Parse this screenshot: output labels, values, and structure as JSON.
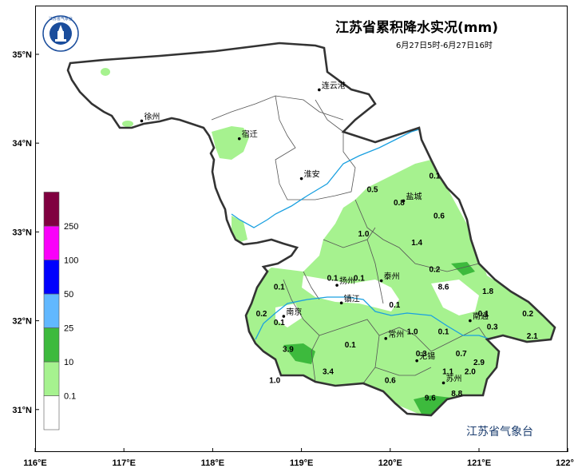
{
  "title": "江苏省累积降水实况(mm)",
  "subtitle": "6月27日5时-6月27日16时",
  "source": "江苏省气象台",
  "logo": {
    "text": "江苏省气象台",
    "icon": "meteorological-bureau-logo"
  },
  "axes": {
    "x_ticks": [
      "116°E",
      "117°E",
      "118°E",
      "119°E",
      "120°E",
      "121°E",
      "122°E"
    ],
    "y_ticks": [
      "35°N",
      "34°N",
      "33°N",
      "32°N",
      "31°N"
    ]
  },
  "legend": {
    "levels": [
      "0.1",
      "10",
      "25",
      "50",
      "100",
      "250"
    ],
    "colors": [
      "#ffffff",
      "#a6f28f",
      "#3dba3d",
      "#61b8ff",
      "#0000fe",
      "#fa00fa",
      "#800040"
    ]
  },
  "colors": {
    "river": "#1aa0e0",
    "boundary": "#333333",
    "light_rain": "#a6f28f",
    "moderate_rain": "#3dba3d"
  },
  "cities": [
    {
      "name": "连云港",
      "lon": 119.2,
      "lat": 34.6
    },
    {
      "name": "徐州",
      "lon": 117.2,
      "lat": 34.25
    },
    {
      "name": "宿迁",
      "lon": 118.3,
      "lat": 34.05
    },
    {
      "name": "淮安",
      "lon": 119.0,
      "lat": 33.6
    },
    {
      "name": "盐城",
      "lon": 120.15,
      "lat": 33.35
    },
    {
      "name": "扬州",
      "lon": 119.4,
      "lat": 32.4
    },
    {
      "name": "泰州",
      "lon": 119.9,
      "lat": 32.45
    },
    {
      "name": "南京",
      "lon": 118.8,
      "lat": 32.05
    },
    {
      "name": "镇江",
      "lon": 119.45,
      "lat": 32.2
    },
    {
      "name": "南通",
      "lon": 120.9,
      "lat": 32.0
    },
    {
      "name": "常州",
      "lon": 119.95,
      "lat": 31.8
    },
    {
      "name": "无锡",
      "lon": 120.3,
      "lat": 31.55
    },
    {
      "name": "苏州",
      "lon": 120.6,
      "lat": 31.3
    }
  ],
  "station_values": [
    {
      "value": "0.1",
      "lon": 120.5,
      "lat": 33.6
    },
    {
      "value": "0.5",
      "lon": 119.8,
      "lat": 33.45
    },
    {
      "value": "0.8",
      "lon": 120.1,
      "lat": 33.3
    },
    {
      "value": "0.6",
      "lon": 120.55,
      "lat": 33.15
    },
    {
      "value": "1.0",
      "lon": 119.7,
      "lat": 32.95
    },
    {
      "value": "1.4",
      "lon": 120.3,
      "lat": 32.85
    },
    {
      "value": "0.2",
      "lon": 120.5,
      "lat": 32.55
    },
    {
      "value": "8.6",
      "lon": 120.6,
      "lat": 32.35
    },
    {
      "value": "1.8",
      "lon": 121.1,
      "lat": 32.3
    },
    {
      "value": "0.1",
      "lon": 119.35,
      "lat": 32.45
    },
    {
      "value": "0.1",
      "lon": 119.65,
      "lat": 32.45
    },
    {
      "value": "0.1",
      "lon": 118.75,
      "lat": 32.35
    },
    {
      "value": "0.1",
      "lon": 120.05,
      "lat": 32.15
    },
    {
      "value": "0.1",
      "lon": 121.05,
      "lat": 32.05
    },
    {
      "value": "0.2",
      "lon": 121.55,
      "lat": 32.05
    },
    {
      "value": "0.2",
      "lon": 118.55,
      "lat": 32.05
    },
    {
      "value": "0.1",
      "lon": 118.75,
      "lat": 31.95
    },
    {
      "value": "1.0",
      "lon": 120.25,
      "lat": 31.85
    },
    {
      "value": "0.1",
      "lon": 120.6,
      "lat": 31.85
    },
    {
      "value": "0.3",
      "lon": 121.15,
      "lat": 31.9
    },
    {
      "value": "2.1",
      "lon": 121.6,
      "lat": 31.8
    },
    {
      "value": "3.9",
      "lon": 118.85,
      "lat": 31.65
    },
    {
      "value": "0.1",
      "lon": 119.55,
      "lat": 31.7
    },
    {
      "value": "0.3",
      "lon": 120.35,
      "lat": 31.6
    },
    {
      "value": "0.7",
      "lon": 120.8,
      "lat": 31.6
    },
    {
      "value": "2.9",
      "lon": 121.0,
      "lat": 31.5
    },
    {
      "value": "3.4",
      "lon": 119.3,
      "lat": 31.4
    },
    {
      "value": "1.1",
      "lon": 120.65,
      "lat": 31.4
    },
    {
      "value": "2.0",
      "lon": 120.9,
      "lat": 31.4
    },
    {
      "value": "1.0",
      "lon": 118.7,
      "lat": 31.3
    },
    {
      "value": "0.6",
      "lon": 120.0,
      "lat": 31.3
    },
    {
      "value": "8.8",
      "lon": 120.75,
      "lat": 31.15
    },
    {
      "value": "9.6",
      "lon": 120.45,
      "lat": 31.1
    }
  ]
}
